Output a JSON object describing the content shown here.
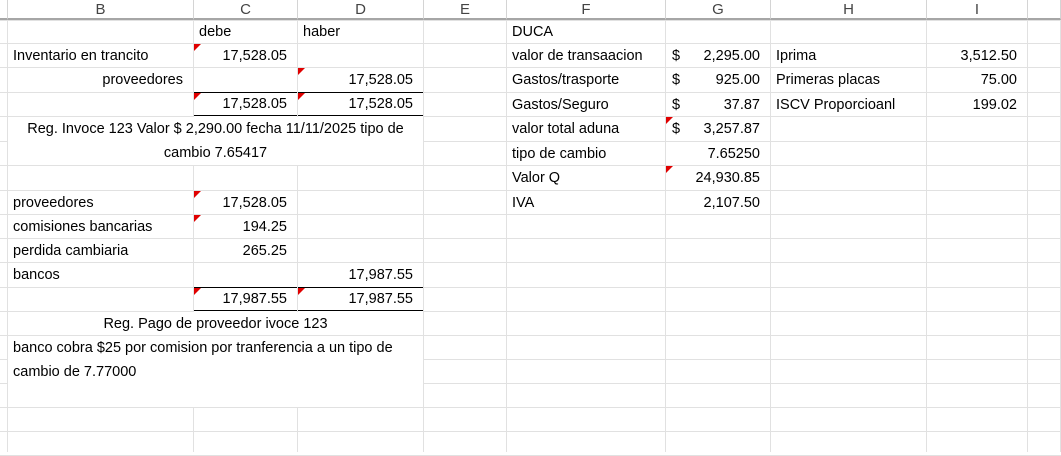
{
  "column_headers": [
    "B",
    "C",
    "D",
    "E",
    "F",
    "G",
    "H",
    "I"
  ],
  "cells": [
    {
      "ref": "C1",
      "value": "debe"
    },
    {
      "ref": "D1",
      "value": "haber"
    },
    {
      "ref": "B2",
      "value": "Inventario en trancito"
    },
    {
      "ref": "C2",
      "value": "17,528.05",
      "align": "right",
      "comment": true
    },
    {
      "ref": "B3",
      "value": "proveedores",
      "align": "right"
    },
    {
      "ref": "D3",
      "value": "17,528.05",
      "align": "right",
      "comment": true
    },
    {
      "ref": "C4",
      "value": "17,528.05",
      "align": "right",
      "comment": true,
      "total": true
    },
    {
      "ref": "D4",
      "value": "17,528.05",
      "align": "right",
      "comment": true,
      "total": true
    },
    {
      "ref": "B5:D6",
      "value": "Reg. Invoce 123 Valor $ 2,290.00 fecha 11/11/2025 tipo de cambio 7.65417",
      "align": "center-wrap"
    },
    {
      "ref": "B8",
      "value": "proveedores"
    },
    {
      "ref": "C8",
      "value": "17,528.05",
      "align": "right",
      "comment": true
    },
    {
      "ref": "B9",
      "value": "comisiones bancarias"
    },
    {
      "ref": "C9",
      "value": "194.25",
      "align": "right",
      "comment": true
    },
    {
      "ref": "B10",
      "value": "perdida cambiaria"
    },
    {
      "ref": "C10",
      "value": "265.25",
      "align": "right"
    },
    {
      "ref": "B11",
      "value": "bancos"
    },
    {
      "ref": "D11",
      "value": "17,987.55",
      "align": "right"
    },
    {
      "ref": "C12",
      "value": "17,987.55",
      "align": "right",
      "comment": true,
      "total": true
    },
    {
      "ref": "D12",
      "value": "17,987.55",
      "align": "right",
      "comment": true,
      "total": true
    },
    {
      "ref": "B13:D13",
      "value": "Reg. Pago de proveedor ivoce 123",
      "align": "center"
    },
    {
      "ref": "B14:D16",
      "value": "banco cobra $25 por comision por tranferencia a un tipo de cambio de 7.77000",
      "align": "wrap"
    },
    {
      "ref": "F1",
      "value": "DUCA"
    },
    {
      "ref": "F2",
      "value": "valor de transaacion"
    },
    {
      "ref": "G2",
      "value": "2,295.00",
      "currency": "$",
      "align": "right"
    },
    {
      "ref": "F3",
      "value": "Gastos/trasporte"
    },
    {
      "ref": "G3",
      "value": "925.00",
      "currency": "$",
      "align": "right"
    },
    {
      "ref": "F4",
      "value": "Gastos/Seguro"
    },
    {
      "ref": "G4",
      "value": "37.87",
      "currency": "$",
      "align": "right"
    },
    {
      "ref": "F5",
      "value": "valor total aduna"
    },
    {
      "ref": "G5",
      "value": "3,257.87",
      "currency": "$",
      "align": "right",
      "comment": true
    },
    {
      "ref": "F6",
      "value": "tipo de cambio"
    },
    {
      "ref": "G6",
      "value": "7.65250",
      "align": "right"
    },
    {
      "ref": "F7",
      "value": "Valor Q"
    },
    {
      "ref": "G7",
      "value": "24,930.85",
      "align": "right",
      "comment": true
    },
    {
      "ref": "F8",
      "value": "IVA"
    },
    {
      "ref": "G8",
      "value": "2,107.50",
      "align": "right"
    },
    {
      "ref": "H2",
      "value": "Iprima"
    },
    {
      "ref": "I2",
      "value": "3,512.50",
      "align": "right"
    },
    {
      "ref": "H3",
      "value": "Primeras placas"
    },
    {
      "ref": "I3",
      "value": "75.00",
      "align": "right"
    },
    {
      "ref": "H4",
      "value": "ISCV Proporcioanl"
    },
    {
      "ref": "I4",
      "value": "199.02",
      "align": "right"
    }
  ],
  "comment_indicator_color": "#e00000"
}
